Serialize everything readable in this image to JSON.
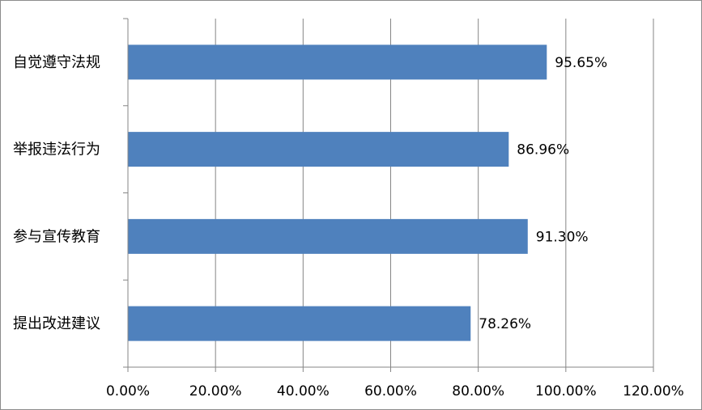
{
  "chart_data": {
    "type": "bar",
    "orientation": "horizontal",
    "categories": [
      "自觉遵守法规",
      "举报违法行为",
      "参与宣传教育",
      "提出改进建议"
    ],
    "values": [
      95.65,
      86.96,
      91.3,
      78.26
    ],
    "value_labels": [
      "95.65%",
      "86.96%",
      "91.30%",
      "78.26%"
    ],
    "xlim": [
      0,
      120
    ],
    "x_ticks": [
      0,
      20,
      40,
      60,
      80,
      100,
      120
    ],
    "x_tick_labels": [
      "0.00%",
      "20.00%",
      "40.00%",
      "60.00%",
      "80.00%",
      "100.00%",
      "120.00%"
    ],
    "title": "",
    "xlabel": "",
    "ylabel": "",
    "grid": "vertical",
    "legend": "none",
    "colors": {
      "bar": "#4f81bd",
      "grid": "#868686",
      "axis": "#868686",
      "border": "#8c8c8c"
    }
  }
}
